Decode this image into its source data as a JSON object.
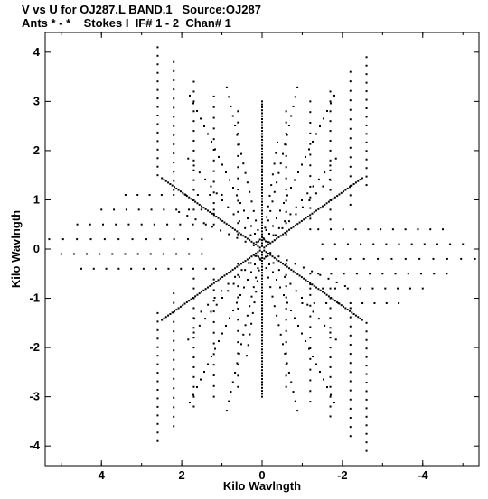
{
  "chart_data": {
    "type": "scatter",
    "title": "V vs U for OJ287.L BAND.1   Source:OJ287",
    "subtitle": "Ants * - *    Stokes I  IF# 1 - 2  Chan# 1",
    "xlabel": "Kilo Wavlngth",
    "ylabel": "Kilo Wavlngth",
    "xlim": [
      5.4,
      -5.4
    ],
    "ylim": [
      -4.4,
      4.4
    ],
    "x_ticks": [
      4,
      2,
      0,
      -2,
      -4
    ],
    "x_tick_labels": [
      "4",
      "2",
      "0",
      "-2",
      "-4"
    ],
    "y_ticks": [
      4,
      3,
      2,
      1,
      0,
      -1,
      -2,
      -3,
      -4
    ],
    "y_tick_labels": [
      "4",
      "3",
      "2",
      "1",
      "0",
      "-1",
      "-2",
      "-3",
      "-4"
    ],
    "grid": false,
    "arms": [
      {
        "angle_deg": 90,
        "max": 3.0,
        "step": 0.06
      },
      {
        "angle_deg": 30,
        "max": 2.9,
        "step": 0.06
      },
      {
        "angle_deg": 150,
        "max": 2.9,
        "step": 0.06
      },
      {
        "angle_deg": 20,
        "max": 2.2,
        "step": 0.22
      },
      {
        "angle_deg": 100,
        "max": 2.4,
        "step": 0.22
      },
      {
        "angle_deg": 140,
        "max": 2.2,
        "step": 0.22
      },
      {
        "angle_deg": 60,
        "max": 3.6,
        "step": 0.18
      },
      {
        "angle_deg": 120,
        "max": 3.6,
        "step": 0.18
      },
      {
        "angle_deg": 75,
        "max": 3.4,
        "step": 0.2
      },
      {
        "angle_deg": 105,
        "max": 3.4,
        "step": 0.2
      },
      {
        "angle_deg": 45,
        "max": 2.6,
        "step": 0.2
      },
      {
        "angle_deg": 135,
        "max": 2.6,
        "step": 0.2
      }
    ],
    "tracks": [
      {
        "u": -2.6,
        "v_from": 1.3,
        "v_to": 3.9,
        "n": 16
      },
      {
        "u": -2.2,
        "v_from": 0.9,
        "v_to": 3.6,
        "n": 15
      },
      {
        "u": -1.7,
        "v_from": 0.6,
        "v_to": 3.2,
        "n": 14
      },
      {
        "u": -1.2,
        "v_from": 0.4,
        "v_to": 3.0,
        "n": 13
      },
      {
        "u": -0.6,
        "v_from": 0.3,
        "v_to": 2.8,
        "n": 12
      },
      {
        "u": 2.6,
        "v_from": 1.5,
        "v_to": 4.1,
        "n": 16
      },
      {
        "u": 2.2,
        "v_from": 1.2,
        "v_to": 3.8,
        "n": 15
      },
      {
        "u": 1.7,
        "v_from": 0.8,
        "v_to": 3.4,
        "n": 14
      },
      {
        "u": 1.2,
        "v_from": 0.5,
        "v_to": 3.1,
        "n": 13
      },
      {
        "u": 0.6,
        "v_from": 0.3,
        "v_to": 2.8,
        "n": 12
      }
    ],
    "horizontal_tracks": [
      {
        "v": 0.2,
        "u_from": 1.5,
        "u_to": 5.3,
        "n": 12
      },
      {
        "v": 0.5,
        "u_from": 1.4,
        "u_to": 4.6,
        "n": 11
      },
      {
        "v": 0.8,
        "u_from": 1.2,
        "u_to": 4.0,
        "n": 10
      },
      {
        "v": 1.1,
        "u_from": 1.0,
        "u_to": 3.4,
        "n": 9
      },
      {
        "v": -0.1,
        "u_from": 1.5,
        "u_to": 5.0,
        "n": 12
      },
      {
        "v": -0.4,
        "u_from": 1.4,
        "u_to": 4.5,
        "n": 11
      }
    ]
  }
}
